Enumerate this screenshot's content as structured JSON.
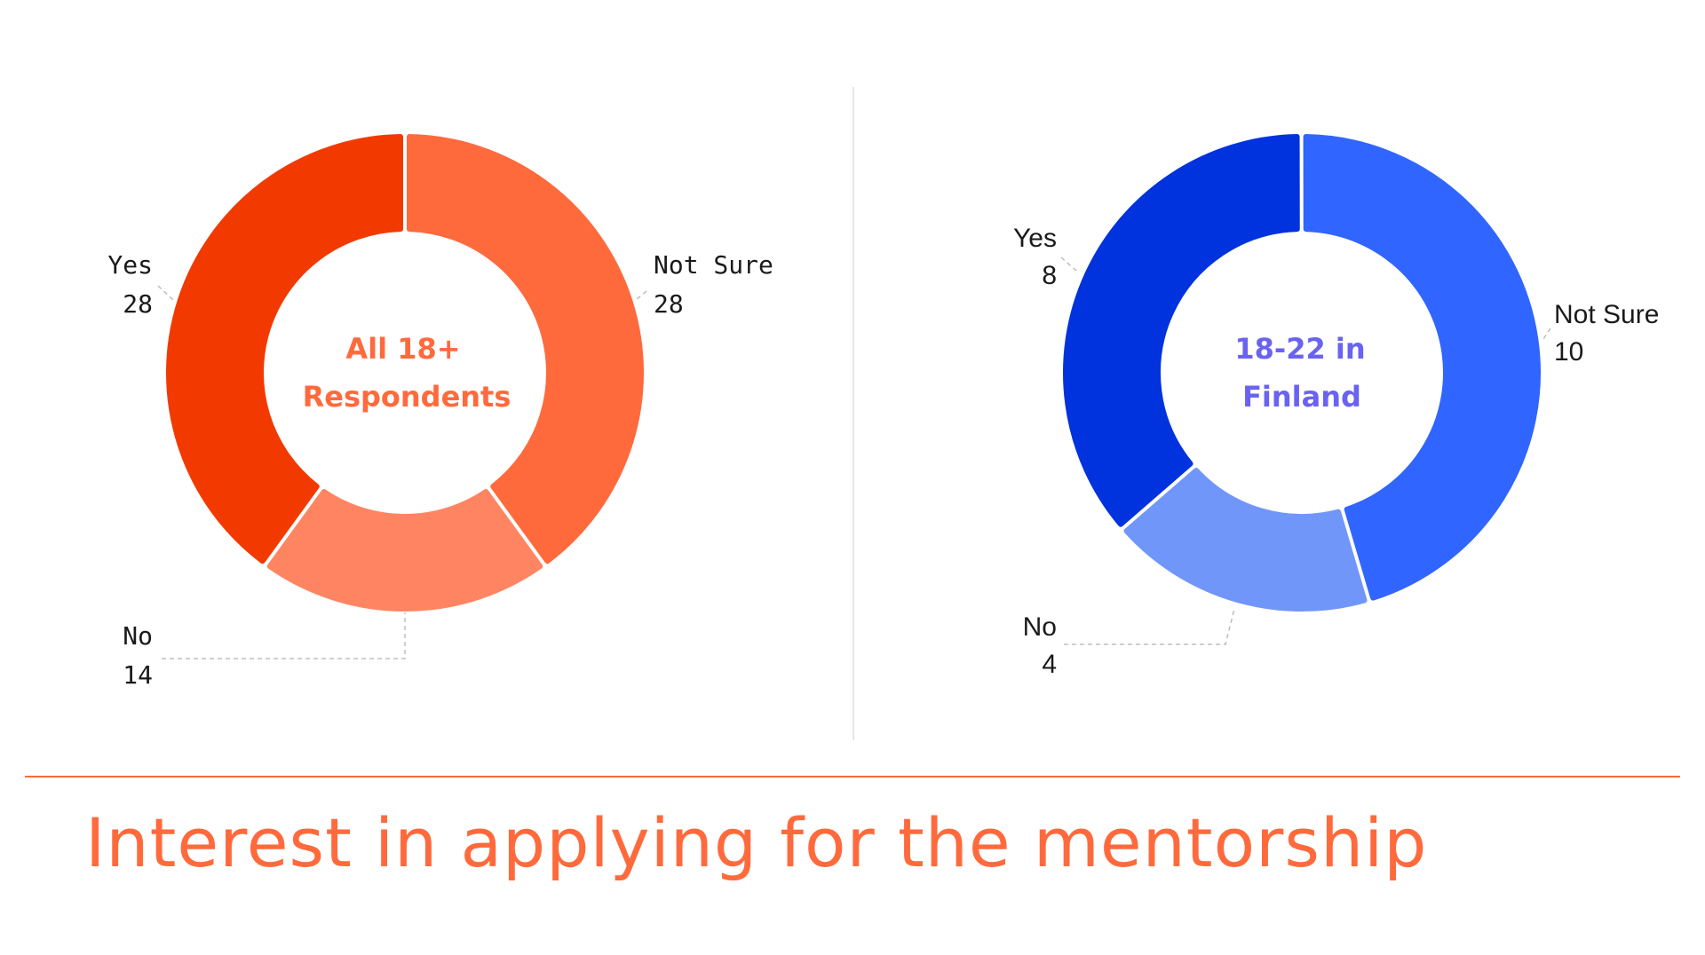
{
  "title": "Interest in applying for the mentorship",
  "chart_data": [
    {
      "type": "pie",
      "title": "All 18+ Respondents",
      "title_lines": [
        "All 18+",
        "Respondents"
      ],
      "categories": [
        "Yes",
        "Not Sure",
        "No"
      ],
      "values": [
        28,
        28,
        14
      ],
      "value_labels": [
        "28",
        "28",
        "14"
      ],
      "colors": [
        "#f23a00",
        "#ff6a3d",
        "#ff8562"
      ],
      "title_color": "#ff6a3d"
    },
    {
      "type": "pie",
      "title": "18-22 in Finland",
      "title_lines": [
        "18-22 in",
        "Finland"
      ],
      "categories": [
        "Yes",
        "Not Sure",
        "No"
      ],
      "values": [
        8,
        10,
        4
      ],
      "value_labels": [
        "8",
        "10",
        "4"
      ],
      "colors": [
        "#0033dd",
        "#3065ff",
        "#7096fa"
      ],
      "title_color": "#6a63f0"
    }
  ]
}
